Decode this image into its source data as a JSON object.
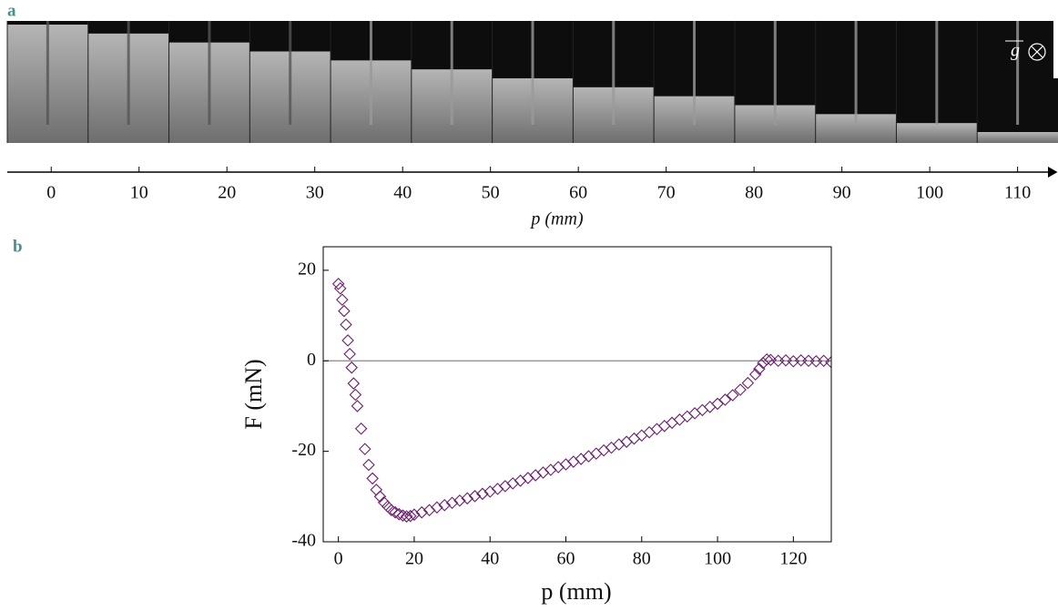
{
  "chart_data": [
    {
      "type": "strip-axis",
      "panel_label": "a",
      "annotation": "g",
      "xlabel": "p (mm)",
      "xlim": [
        -5,
        114.6
      ],
      "xticks": [
        0,
        10,
        20,
        30,
        40,
        50,
        60,
        70,
        80,
        90,
        100,
        110
      ]
    },
    {
      "type": "scatter",
      "panel_label": "b",
      "xlabel": "p (mm)",
      "ylabel": "F (mN)",
      "color": "#6c1f70",
      "marker": "diamond",
      "xlim": [
        -4,
        130
      ],
      "ylim": [
        -40,
        25.2
      ],
      "xticks": [
        0,
        20,
        40,
        60,
        80,
        100,
        120
      ],
      "yticks": [
        -40,
        -20,
        0,
        20
      ],
      "hline": 0,
      "x": [
        0,
        0.5,
        1,
        1.5,
        2,
        2.5,
        3,
        3.5,
        4,
        4.5,
        5,
        6,
        7,
        8,
        9,
        10,
        11,
        12,
        13,
        14,
        15,
        16,
        17,
        18,
        19,
        20,
        22,
        24,
        26,
        28,
        30,
        32,
        34,
        36,
        38,
        40,
        42,
        44,
        46,
        48,
        50,
        52,
        54,
        56,
        58,
        60,
        62,
        64,
        66,
        68,
        70,
        72,
        74,
        76,
        78,
        80,
        82,
        84,
        86,
        88,
        90,
        92,
        94,
        96,
        98,
        100,
        102,
        104,
        106,
        108,
        110,
        111,
        112,
        113,
        114,
        116,
        118,
        120,
        122,
        124,
        126,
        128,
        130
      ],
      "y": [
        17,
        16,
        13.5,
        11,
        8,
        4.5,
        1.5,
        -1.5,
        -5,
        -7.5,
        -10,
        -15,
        -19.5,
        -23,
        -26,
        -28.5,
        -30,
        -31.3,
        -32.2,
        -33,
        -33.5,
        -33.9,
        -34.2,
        -34.4,
        -34.3,
        -34,
        -33.5,
        -33,
        -32.4,
        -31.9,
        -31.4,
        -30.9,
        -30.4,
        -29.9,
        -29.4,
        -28.9,
        -28.3,
        -27.7,
        -27.1,
        -26.5,
        -25.9,
        -25.3,
        -24.7,
        -24.1,
        -23.5,
        -22.9,
        -22.3,
        -21.7,
        -21.1,
        -20.5,
        -19.8,
        -19.2,
        -18.5,
        -17.9,
        -17.2,
        -16.5,
        -15.8,
        -15.1,
        -14.4,
        -13.7,
        -13,
        -12.3,
        -11.6,
        -10.9,
        -10.2,
        -9.5,
        -8.6,
        -7.6,
        -6.4,
        -4.9,
        -3,
        -1.8,
        -0.5,
        0.3,
        0.2,
        0,
        0.1,
        -0.1,
        0.1,
        0,
        -0.1,
        0,
        -0.3
      ]
    }
  ]
}
